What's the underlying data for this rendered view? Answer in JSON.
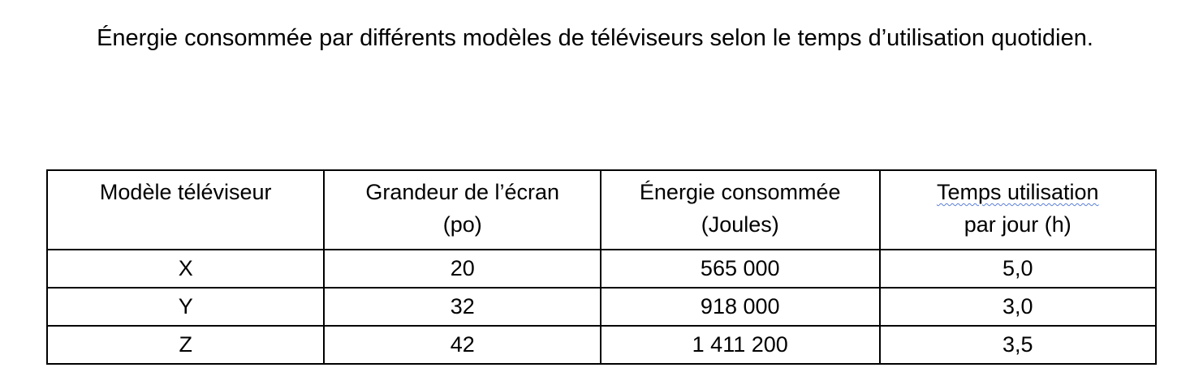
{
  "title": "Énergie consommée par différents modèles de téléviseurs selon le temps d’utilisation quotidien.",
  "table": {
    "headers": [
      [
        "Modèle téléviseur"
      ],
      [
        "Grandeur de l’écran",
        "(po)"
      ],
      [
        "Énergie consommée",
        "(Joules)"
      ],
      [
        "Temps utilisation",
        "par jour (h)"
      ]
    ],
    "rows": [
      [
        "X",
        "20",
        "565 000",
        "5,0"
      ],
      [
        "Y",
        "32",
        "918 000",
        "3,0"
      ],
      [
        "Z",
        "42",
        "1 411 200",
        "3,5"
      ]
    ]
  }
}
